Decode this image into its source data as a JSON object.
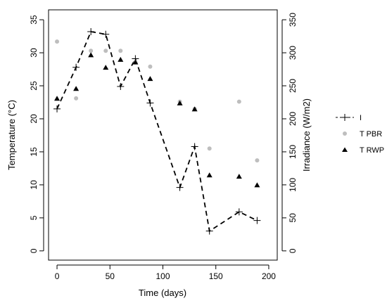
{
  "chart_data": {
    "type": "scatter",
    "title": "",
    "xlabel": "Time (days)",
    "ylabel_left": "Temperature (°C)",
    "ylabel_right": "Irradiance (W/m2)",
    "xlim": [
      -8,
      208
    ],
    "ylim_left": [
      -1.4,
      36.5
    ],
    "ylim_right": [
      -14,
      365
    ],
    "x_ticks": [
      0,
      50,
      100,
      150,
      200
    ],
    "y_ticks_left": [
      0,
      5,
      10,
      15,
      20,
      25,
      30,
      35
    ],
    "y_ticks_right": [
      0,
      50,
      100,
      150,
      200,
      250,
      300,
      350
    ],
    "grid": false,
    "legend_position": "right",
    "series": [
      {
        "name": "I",
        "axis": "right",
        "style": "dashed-line-plus",
        "color": "#000000",
        "points": [
          {
            "x": 0,
            "y": 215
          },
          {
            "x": 18,
            "y": 278
          },
          {
            "x": 32,
            "y": 332
          },
          {
            "x": 46,
            "y": 328
          },
          {
            "x": 60,
            "y": 249
          },
          {
            "x": 74,
            "y": 291
          },
          {
            "x": 88,
            "y": 224
          },
          {
            "x": 116,
            "y": 96
          },
          {
            "x": 130,
            "y": 158
          },
          {
            "x": 144,
            "y": 30
          },
          {
            "x": 172,
            "y": 59
          },
          {
            "x": 189,
            "y": 46
          }
        ]
      },
      {
        "name": "T PBR",
        "axis": "left",
        "style": "grey-circle",
        "color": "#bebebe",
        "points": [
          {
            "x": 0,
            "y": 31.7
          },
          {
            "x": 18,
            "y": 23.1
          },
          {
            "x": 32,
            "y": 30.3
          },
          {
            "x": 46,
            "y": 30.3
          },
          {
            "x": 60,
            "y": 30.3
          },
          {
            "x": 74,
            "y": 28.6
          },
          {
            "x": 88,
            "y": 27.9
          },
          {
            "x": 116,
            "y": 22.6
          },
          {
            "x": 130,
            "y": 21.5
          },
          {
            "x": 144,
            "y": 15.5
          },
          {
            "x": 172,
            "y": 22.6
          },
          {
            "x": 189,
            "y": 13.7
          }
        ]
      },
      {
        "name": "T RWP",
        "axis": "left",
        "style": "black-triangle",
        "color": "#000000",
        "points": [
          {
            "x": 0,
            "y": 23.0
          },
          {
            "x": 18,
            "y": 24.5
          },
          {
            "x": 32,
            "y": 29.6
          },
          {
            "x": 46,
            "y": 27.7
          },
          {
            "x": 60,
            "y": 28.9
          },
          {
            "x": 74,
            "y": 28.5
          },
          {
            "x": 88,
            "y": 26.0
          },
          {
            "x": 116,
            "y": 22.3
          },
          {
            "x": 130,
            "y": 21.4
          },
          {
            "x": 144,
            "y": 11.4
          },
          {
            "x": 172,
            "y": 11.2
          },
          {
            "x": 189,
            "y": 9.9
          }
        ]
      }
    ]
  }
}
